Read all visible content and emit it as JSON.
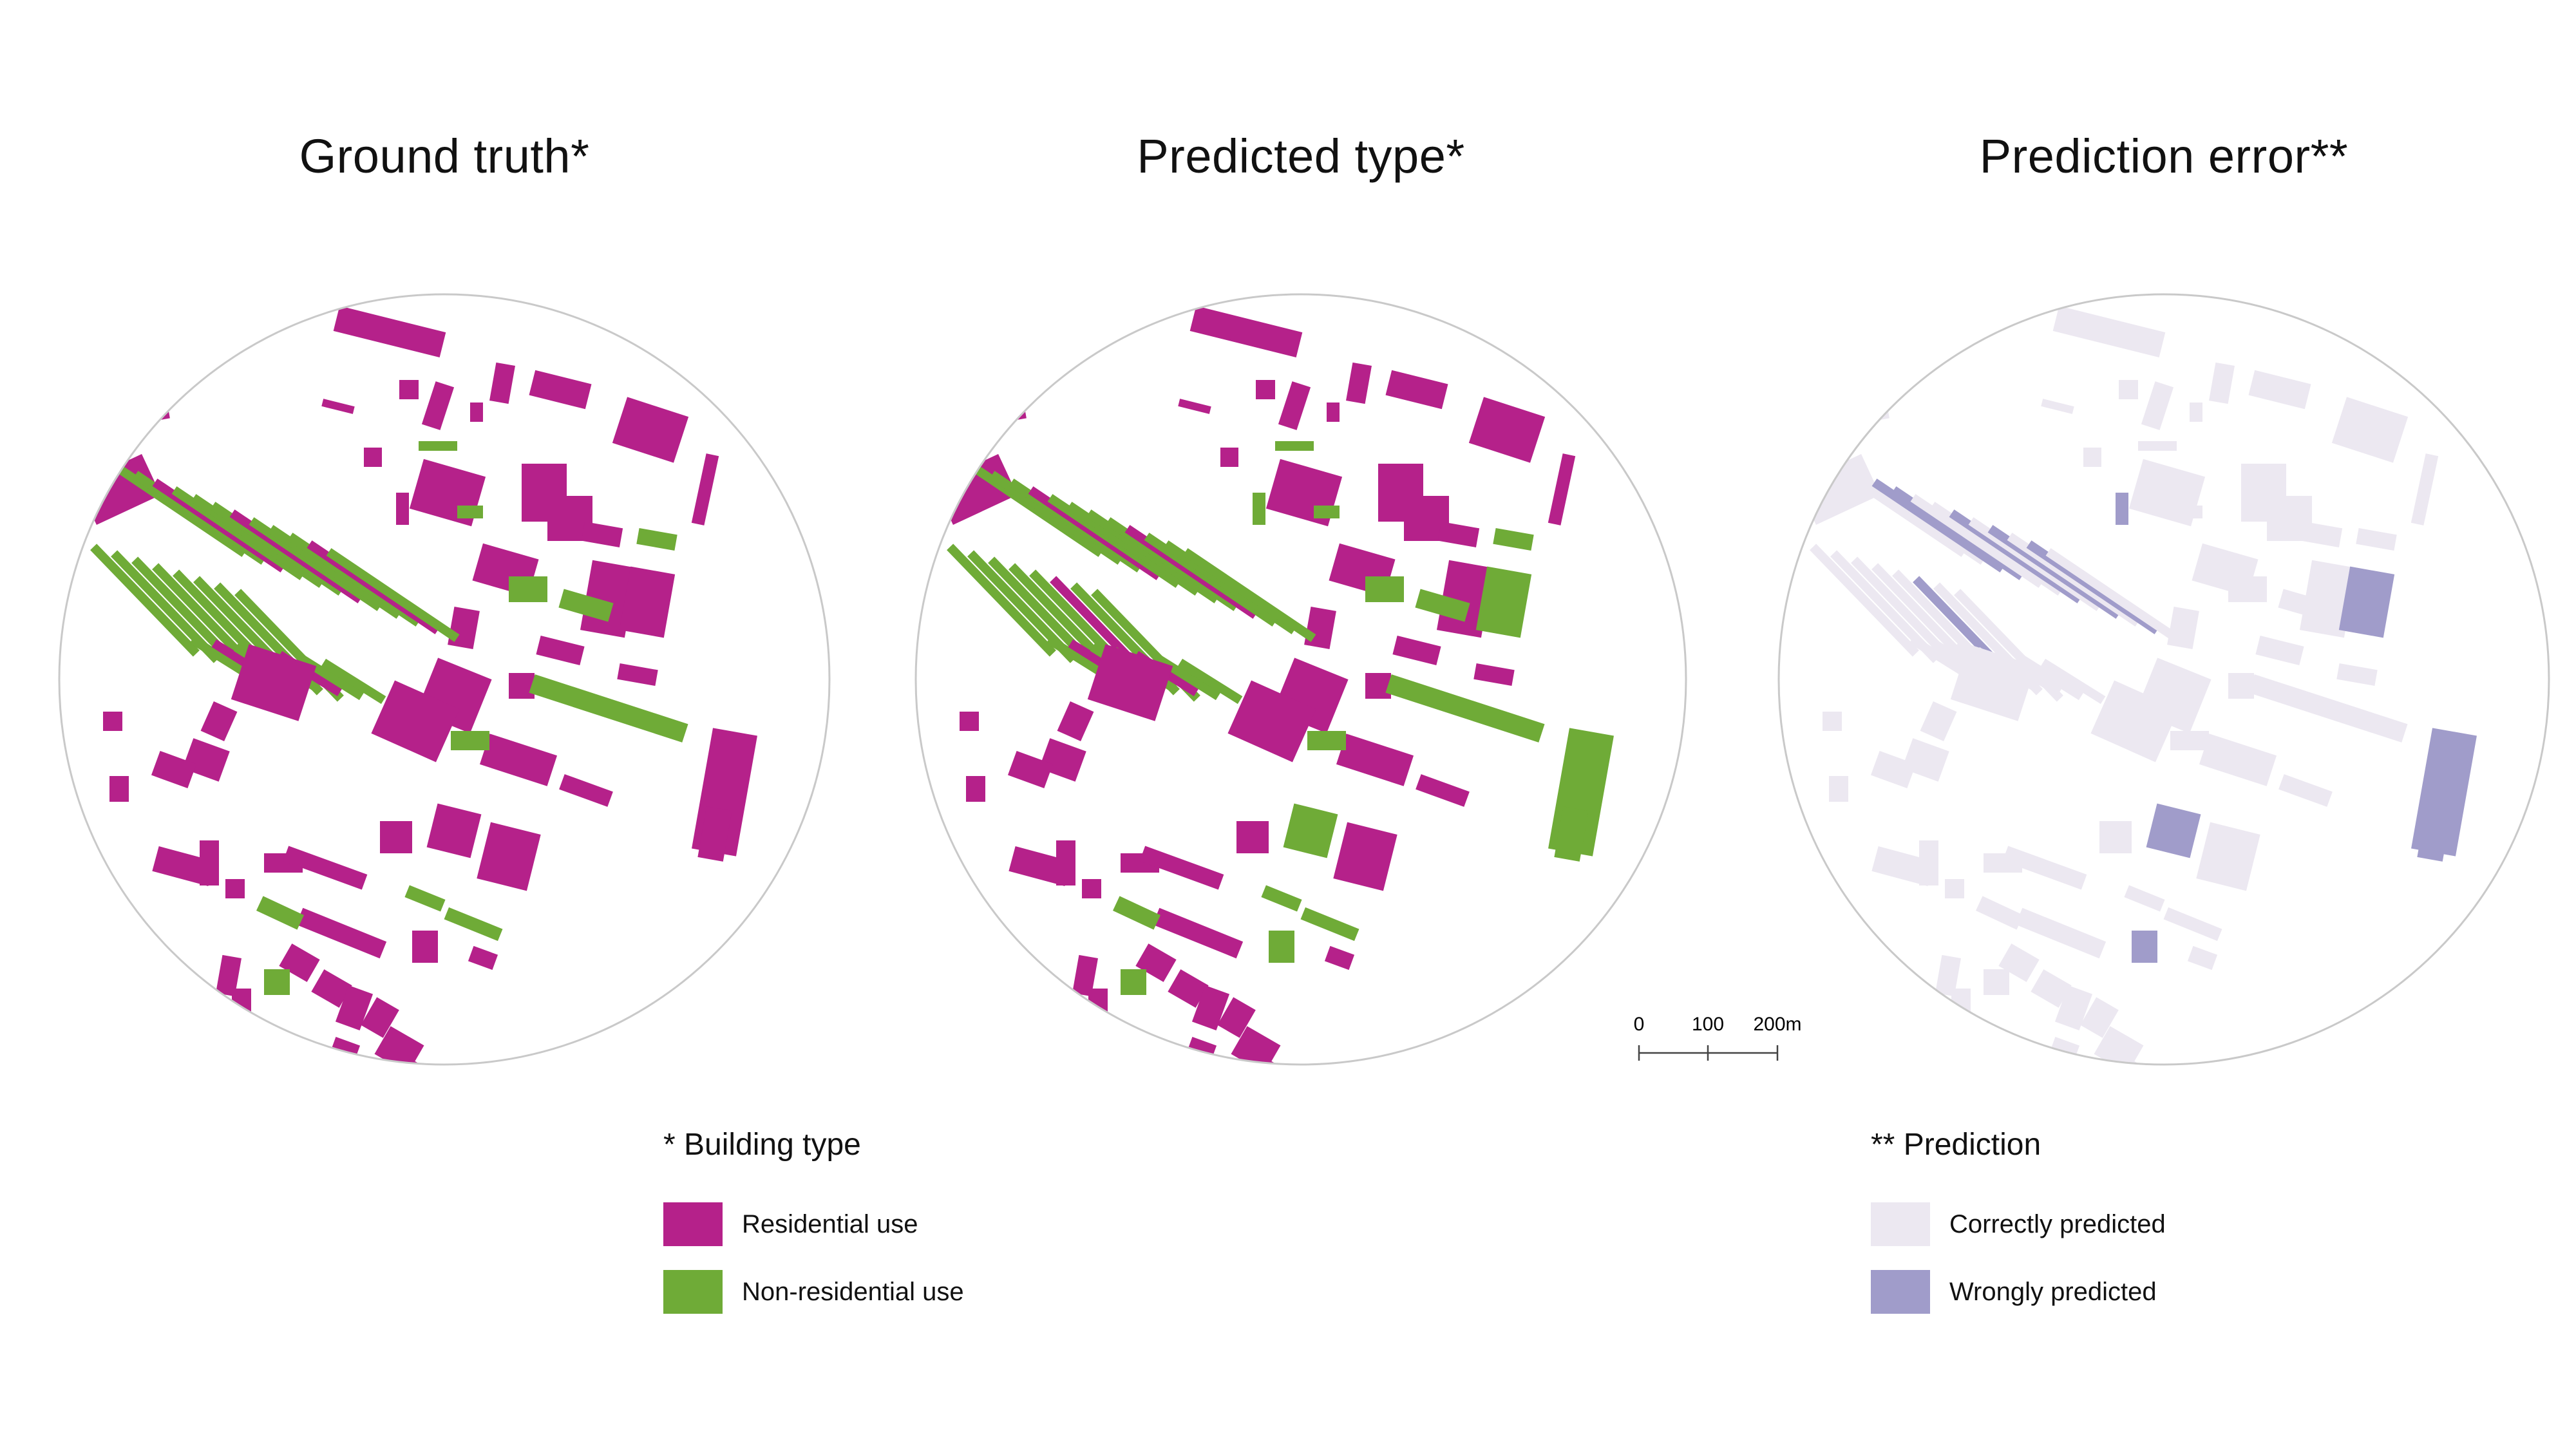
{
  "panels": [
    {
      "id": "ground",
      "title": "Ground truth*"
    },
    {
      "id": "pred",
      "title": "Predicted type*"
    },
    {
      "id": "error",
      "title": "Prediction error**"
    }
  ],
  "scale_bar": {
    "labels": [
      "0",
      "100",
      "200m"
    ]
  },
  "legend_building": {
    "title": "* Building type",
    "items": [
      {
        "label": "Residential use",
        "color": "#b5218a"
      },
      {
        "label": "Non-residential use",
        "color": "#6fab37"
      }
    ]
  },
  "legend_error": {
    "title": "** Prediction",
    "items": [
      {
        "label": "Correctly predicted",
        "color": "#ece8f1"
      },
      {
        "label": "Wrongly predicted",
        "color": "#a09cca"
      }
    ]
  }
}
